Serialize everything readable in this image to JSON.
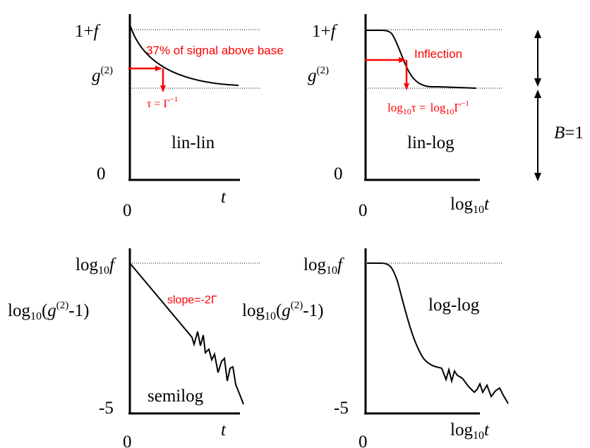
{
  "panel_linlin": {
    "y_top_pre": "1+",
    "y_top_var": "f",
    "y_g": "g",
    "y_g_sup": "(2)",
    "y_zero": "0",
    "x_zero": "0",
    "x_t": "t",
    "annotation_signal": "37% of signal above base",
    "annotation_tau": "τ = Γ",
    "annotation_tau_sup": "−1",
    "panel_name": "lin-lin"
  },
  "panel_linlog": {
    "y_top_pre": "1+",
    "y_top_var": "f",
    "y_g": "g",
    "y_g_sup": "(2)",
    "y_zero": "0",
    "x_zero": "0",
    "x_log": "log",
    "x_sub": "10",
    "x_t": "t",
    "annotation_inflection": "Inflection",
    "annotation_log_a": "log",
    "annotation_sub_a": "10",
    "annotation_tau_a": "τ = ",
    "annotation_log_b": "log",
    "annotation_sub_b": "10",
    "annotation_gamma": "Γ",
    "annotation_gamma_sup": "−1",
    "panel_name": "lin-log"
  },
  "baseline_marker": {
    "b_var": "B",
    "b_eq": "=1"
  },
  "panel_semilog": {
    "y_top_log": "log",
    "y_top_sub": "10",
    "y_top_var": "f",
    "y_label_log": "log",
    "y_label_sub": "10",
    "y_label_open": "(",
    "y_label_g": "g",
    "y_label_sup": "(2)",
    "y_label_close": "-1)",
    "y_bottom": "-5",
    "x_zero": "0",
    "x_t": "t",
    "annotation_slope": "slope=-2Γ",
    "panel_name": "semilog"
  },
  "panel_loglog": {
    "y_top_log": "log",
    "y_top_sub": "10",
    "y_top_var": "f",
    "y_label_log": "log",
    "y_label_sub": "10",
    "y_label_open": "(",
    "y_label_g": "g",
    "y_label_sup": "(2)",
    "y_label_close": "-1)",
    "y_bottom": "-5",
    "x_zero": "0",
    "x_log": "log",
    "x_sub": "10",
    "x_t": "t",
    "panel_name": "log-log"
  }
}
